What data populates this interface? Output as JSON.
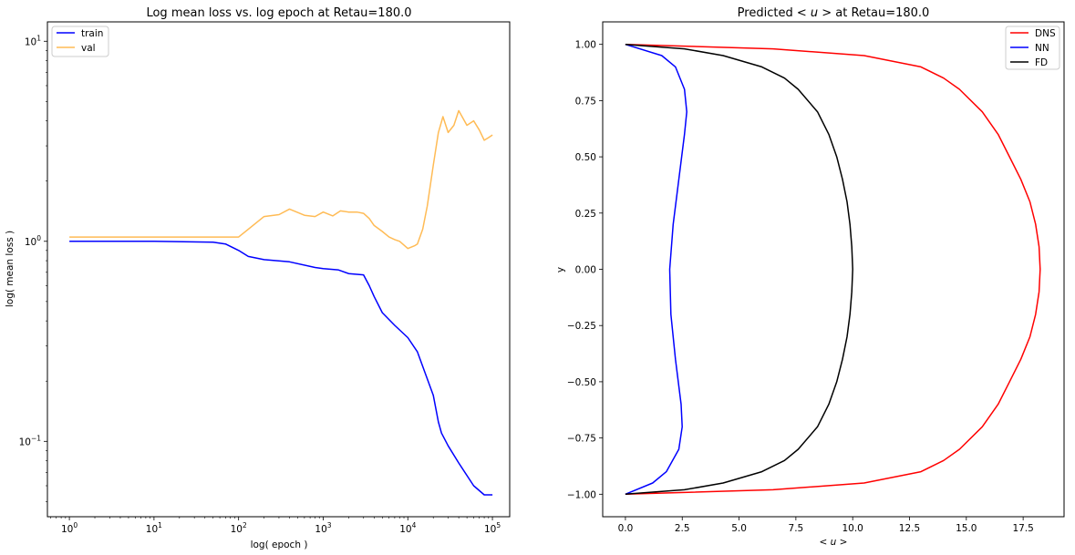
{
  "chart_data": [
    {
      "type": "line",
      "title": "Log mean loss vs. log epoch at Retau=180.0",
      "xlabel": "log( epoch )",
      "ylabel": "log( mean loss )",
      "xscale": "log",
      "yscale": "log",
      "xlim": [
        0.55,
        160000
      ],
      "ylim": [
        0.042,
        12.5
      ],
      "xtick_labels": [
        {
          "value": 1,
          "base": "10",
          "exp": "0"
        },
        {
          "value": 10,
          "base": "10",
          "exp": "1"
        },
        {
          "value": 100,
          "base": "10",
          "exp": "2"
        },
        {
          "value": 1000,
          "base": "10",
          "exp": "3"
        },
        {
          "value": 10000,
          "base": "10",
          "exp": "4"
        },
        {
          "value": 100000,
          "base": "10",
          "exp": "5"
        }
      ],
      "ytick_labels": [
        {
          "value": 0.1,
          "base": "10",
          "exp": "−1"
        },
        {
          "value": 1,
          "base": "10",
          "exp": "0"
        },
        {
          "value": 10,
          "base": "10",
          "exp": "1"
        }
      ],
      "legend_position": "upper-left",
      "grid": false,
      "series": [
        {
          "name": "train",
          "color": "#0000ff",
          "x": [
            1,
            10,
            50,
            70,
            100,
            130,
            200,
            400,
            800,
            1000,
            1500,
            2000,
            3000,
            3500,
            4000,
            5000,
            7000,
            10000,
            13000,
            16000,
            20000,
            23000,
            25000,
            30000,
            40000,
            60000,
            80000,
            100000
          ],
          "y": [
            1.0,
            1.0,
            0.99,
            0.97,
            0.9,
            0.84,
            0.81,
            0.79,
            0.74,
            0.73,
            0.72,
            0.69,
            0.68,
            0.6,
            0.53,
            0.44,
            0.38,
            0.33,
            0.28,
            0.22,
            0.17,
            0.125,
            0.11,
            0.095,
            0.078,
            0.06,
            0.054,
            0.054
          ]
        },
        {
          "name": "val",
          "color": "#ffbb55",
          "x": [
            1,
            100,
            200,
            300,
            400,
            600,
            800,
            1000,
            1300,
            1600,
            2000,
            2500,
            3000,
            3500,
            4000,
            5000,
            6000,
            7000,
            8000,
            10000,
            12000,
            13000,
            15000,
            17000,
            20000,
            23000,
            26000,
            30000,
            35000,
            40000,
            50000,
            60000,
            70000,
            80000,
            90000,
            100000
          ],
          "y": [
            1.05,
            1.05,
            1.33,
            1.36,
            1.45,
            1.35,
            1.33,
            1.4,
            1.34,
            1.42,
            1.4,
            1.4,
            1.38,
            1.3,
            1.2,
            1.12,
            1.05,
            1.02,
            1.0,
            0.92,
            0.95,
            0.97,
            1.15,
            1.5,
            2.4,
            3.5,
            4.2,
            3.5,
            3.8,
            4.5,
            3.8,
            4.0,
            3.6,
            3.2,
            3.3,
            3.4
          ]
        }
      ]
    },
    {
      "type": "line",
      "title": "Predicted < u > at Retau=180.0",
      "title_display": {
        "pre": "Predicted ",
        "math": "< u >",
        "post": " at Retau=180.0"
      },
      "xlabel": "< u >",
      "ylabel": "y",
      "xlim": [
        -1,
        19.3
      ],
      "ylim": [
        -1.1,
        1.1
      ],
      "xticks": [
        "0.0",
        "2.5",
        "5.0",
        "7.5",
        "10.0",
        "12.5",
        "15.0",
        "17.5"
      ],
      "xtick_values": [
        0,
        2.5,
        5,
        7.5,
        10,
        12.5,
        15,
        17.5
      ],
      "yticks": [
        "1.00",
        "0.75",
        "0.50",
        "0.25",
        "0.00",
        "−0.25",
        "−0.50",
        "−0.75",
        "−1.00"
      ],
      "ytick_values": [
        1,
        0.75,
        0.5,
        0.25,
        0,
        -0.25,
        -0.5,
        -0.75,
        -1
      ],
      "legend_position": "upper-right",
      "grid": false,
      "series": [
        {
          "name": "DNS",
          "color": "#ff0000",
          "y": [
            1.0,
            0.98,
            0.95,
            0.9,
            0.85,
            0.8,
            0.7,
            0.6,
            0.5,
            0.4,
            0.3,
            0.2,
            0.1,
            0.0,
            -0.1,
            -0.2,
            -0.3,
            -0.4,
            -0.5,
            -0.6,
            -0.7,
            -0.8,
            -0.85,
            -0.9,
            -0.95,
            -0.98,
            -1.0
          ],
          "x": [
            0.0,
            6.5,
            10.5,
            13.0,
            14.0,
            14.7,
            15.7,
            16.4,
            16.9,
            17.4,
            17.8,
            18.05,
            18.2,
            18.25,
            18.2,
            18.05,
            17.8,
            17.4,
            16.9,
            16.4,
            15.7,
            14.7,
            14.0,
            13.0,
            10.5,
            6.5,
            0.0
          ]
        },
        {
          "name": "NN",
          "color": "#0000ff",
          "y": [
            1.0,
            0.95,
            0.9,
            0.8,
            0.7,
            0.6,
            0.4,
            0.2,
            0.0,
            -0.2,
            -0.4,
            -0.6,
            -0.7,
            -0.8,
            -0.9,
            -0.95,
            -1.0
          ],
          "x": [
            0.0,
            1.6,
            2.2,
            2.6,
            2.7,
            2.6,
            2.35,
            2.1,
            1.95,
            2.0,
            2.2,
            2.45,
            2.5,
            2.35,
            1.8,
            1.2,
            0.0
          ]
        },
        {
          "name": "FD",
          "color": "#000000",
          "y": [
            1.0,
            0.98,
            0.95,
            0.9,
            0.85,
            0.8,
            0.7,
            0.6,
            0.5,
            0.4,
            0.3,
            0.2,
            0.1,
            0.0,
            -0.1,
            -0.2,
            -0.3,
            -0.4,
            -0.5,
            -0.6,
            -0.7,
            -0.8,
            -0.85,
            -0.9,
            -0.95,
            -0.98,
            -1.0
          ],
          "x": [
            0.0,
            2.6,
            4.3,
            6.0,
            7.0,
            7.6,
            8.45,
            8.95,
            9.3,
            9.55,
            9.75,
            9.88,
            9.96,
            10.0,
            9.96,
            9.88,
            9.75,
            9.55,
            9.3,
            8.95,
            8.45,
            7.6,
            7.0,
            6.0,
            4.3,
            2.6,
            0.0
          ]
        }
      ]
    }
  ]
}
